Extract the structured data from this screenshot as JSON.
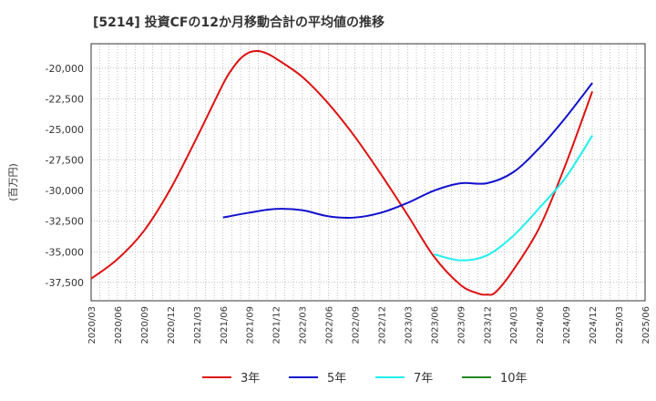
{
  "chart_data": {
    "type": "line",
    "title": "[5214]  投資CFの12か月移動合計の平均値の推移",
    "ylabel": "(百万円)",
    "xlabel": "",
    "ylim": [
      -39000,
      -18000
    ],
    "y_ticks": [
      -20000,
      -22500,
      -25000,
      -27500,
      -30000,
      -32500,
      -35000,
      -37500
    ],
    "y_tick_labels": [
      "-20,000",
      "-22,500",
      "-25,000",
      "-27,500",
      "-30,000",
      "-32,500",
      "-35,000",
      "-37,500"
    ],
    "x_tick_labels": [
      "2020/03",
      "2020/06",
      "2020/09",
      "2020/12",
      "2021/03",
      "2021/06",
      "2021/09",
      "2021/12",
      "2022/03",
      "2022/06",
      "2022/09",
      "2022/12",
      "2023/03",
      "2023/06",
      "2023/09",
      "2023/12",
      "2024/03",
      "2024/06",
      "2024/09",
      "2024/12",
      "2025/03",
      "2025/06"
    ],
    "grid": true,
    "legend_position": "bottom",
    "series": [
      {
        "name": "3年",
        "color": "#dd1111",
        "x": [
          "2020/03",
          "2020/06",
          "2020/09",
          "2020/12",
          "2021/03",
          "2021/06",
          "2021/07",
          "2021/08",
          "2021/09",
          "2021/10",
          "2021/11",
          "2021/12",
          "2022/03",
          "2022/06",
          "2022/09",
          "2022/12",
          "2023/03",
          "2023/06",
          "2023/09",
          "2023/11",
          "2023/12",
          "2024/01",
          "2024/03",
          "2024/06",
          "2024/09",
          "2024/12"
        ],
        "values": [
          -37200,
          -35600,
          -33300,
          -29900,
          -25700,
          -21300,
          -20100,
          -19200,
          -18700,
          -18600,
          -18800,
          -19200,
          -20700,
          -22900,
          -25600,
          -28700,
          -32000,
          -35400,
          -37700,
          -38400,
          -38500,
          -38300,
          -36500,
          -33000,
          -27800,
          -21900
        ]
      },
      {
        "name": "5年",
        "color": "#1111cc",
        "x": [
          "2021/06",
          "2021/09",
          "2021/12",
          "2022/03",
          "2022/06",
          "2022/09",
          "2022/12",
          "2023/03",
          "2023/06",
          "2023/09",
          "2023/12",
          "2024/03",
          "2024/06",
          "2024/09",
          "2024/12"
        ],
        "values": [
          -32200,
          -31800,
          -31500,
          -31600,
          -32100,
          -32200,
          -31800,
          -31000,
          -30000,
          -29400,
          -29400,
          -28500,
          -26500,
          -24000,
          -21200
        ]
      },
      {
        "name": "7年",
        "color": "#22eeee",
        "x": [
          "2023/06",
          "2023/09",
          "2023/12",
          "2024/03",
          "2024/06",
          "2024/09",
          "2024/12"
        ],
        "values": [
          -35200,
          -35700,
          -35300,
          -33700,
          -31400,
          -28900,
          -25500
        ]
      },
      {
        "name": "10年",
        "color": "#228822",
        "x": [],
        "values": []
      }
    ]
  }
}
